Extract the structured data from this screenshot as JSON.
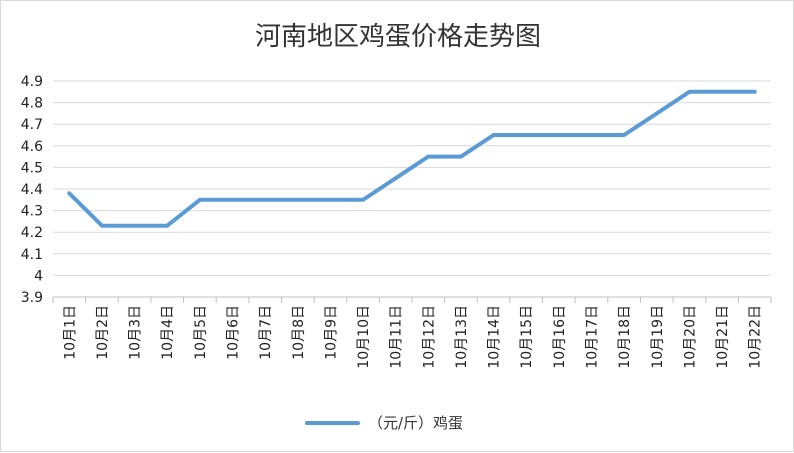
{
  "chart_data": {
    "type": "line",
    "title": "河南地区鸡蛋价格走势图",
    "xlabel": "",
    "ylabel": "",
    "categories": [
      "10月1日",
      "10月2日",
      "10月3日",
      "10月4日",
      "10月5日",
      "10月6日",
      "10月7日",
      "10月8日",
      "10月9日",
      "10月10日",
      "10月11日",
      "10月12日",
      "10月13日",
      "10月14日",
      "10月15日",
      "10月16日",
      "10月17日",
      "10月18日",
      "10月19日",
      "10月20日",
      "10月21日",
      "10月22日"
    ],
    "ylim": [
      3.9,
      4.9
    ],
    "yticks": [
      "3.9",
      "4",
      "4.1",
      "4.2",
      "4.3",
      "4.4",
      "4.5",
      "4.6",
      "4.7",
      "4.8",
      "4.9"
    ],
    "grid": true,
    "legend": "bottom",
    "series": [
      {
        "name": "（元/斤）鸡蛋",
        "color": "#5b9bd5",
        "values": [
          4.38,
          4.23,
          4.23,
          4.23,
          4.35,
          4.35,
          4.35,
          4.35,
          4.35,
          4.35,
          4.45,
          4.55,
          4.55,
          4.65,
          4.65,
          4.65,
          4.65,
          4.65,
          4.75,
          4.85,
          4.85,
          4.85
        ]
      }
    ]
  }
}
